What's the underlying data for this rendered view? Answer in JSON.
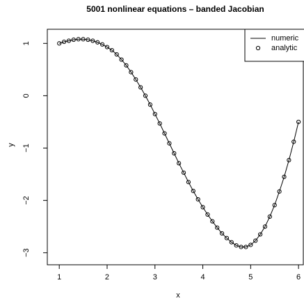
{
  "chart_data": {
    "type": "line",
    "title": "5001 nonlinear equations – banded Jacobian",
    "x_label": "x",
    "y_label": "y",
    "x": [
      1.0,
      1.1,
      1.2,
      1.3,
      1.4,
      1.5,
      1.6,
      1.7,
      1.8,
      1.9,
      2.0,
      2.1,
      2.2,
      2.3,
      2.4,
      2.5,
      2.6,
      2.7,
      2.8,
      2.9,
      3.0,
      3.1,
      3.2,
      3.3,
      3.4,
      3.5,
      3.6,
      3.7,
      3.8,
      3.9,
      4.0,
      4.1,
      4.2,
      4.3,
      4.4,
      4.5,
      4.6,
      4.7,
      4.8,
      4.9,
      5.0,
      5.1,
      5.2,
      5.3,
      5.4,
      5.5,
      5.6,
      5.7,
      5.8,
      5.9,
      6.0
    ],
    "series": [
      {
        "name": "numeric",
        "style": "line",
        "color": "#000000",
        "values": [
          1.0,
          1.03,
          1.05,
          1.07,
          1.08,
          1.08,
          1.07,
          1.05,
          1.02,
          0.98,
          0.93,
          0.87,
          0.79,
          0.69,
          0.58,
          0.45,
          0.31,
          0.16,
          0.0,
          -0.17,
          -0.35,
          -0.53,
          -0.72,
          -0.91,
          -1.1,
          -1.29,
          -1.47,
          -1.65,
          -1.82,
          -1.98,
          -2.13,
          -2.27,
          -2.4,
          -2.52,
          -2.63,
          -2.72,
          -2.8,
          -2.86,
          -2.89,
          -2.89,
          -2.85,
          -2.77,
          -2.65,
          -2.5,
          -2.31,
          -2.09,
          -1.83,
          -1.55,
          -1.23,
          -0.88,
          -0.5
        ]
      },
      {
        "name": "analytic",
        "style": "points",
        "color": "#000000",
        "values": [
          1.0,
          1.03,
          1.05,
          1.07,
          1.08,
          1.08,
          1.07,
          1.05,
          1.02,
          0.98,
          0.93,
          0.87,
          0.79,
          0.69,
          0.58,
          0.45,
          0.31,
          0.16,
          0.0,
          -0.17,
          -0.35,
          -0.53,
          -0.72,
          -0.91,
          -1.1,
          -1.29,
          -1.47,
          -1.65,
          -1.82,
          -1.98,
          -2.13,
          -2.27,
          -2.4,
          -2.52,
          -2.63,
          -2.72,
          -2.8,
          -2.86,
          -2.89,
          -2.89,
          -2.85,
          -2.77,
          -2.65,
          -2.5,
          -2.31,
          -2.09,
          -1.83,
          -1.55,
          -1.23,
          -0.88,
          -0.5
        ]
      }
    ],
    "xlim": [
      0.75,
      6.1
    ],
    "ylim": [
      -3.23,
      1.27
    ],
    "xticks": [
      1,
      2,
      3,
      4,
      5,
      6
    ],
    "yticks": [
      {
        "value": -3,
        "label": "−3"
      },
      {
        "value": -2,
        "label": "−2"
      },
      {
        "value": -1,
        "label": "−1"
      },
      0,
      1
    ],
    "legend": "top-right"
  }
}
